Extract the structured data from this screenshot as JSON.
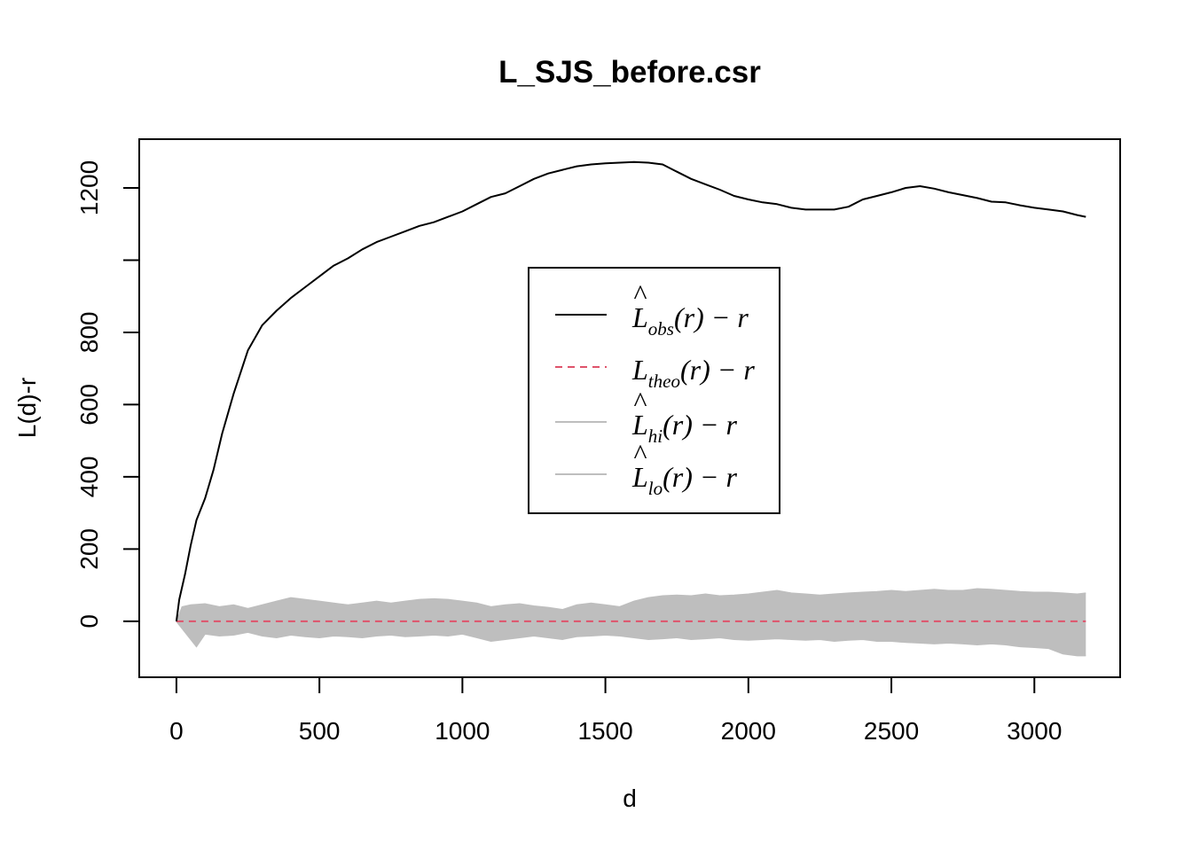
{
  "chart_data": {
    "type": "line",
    "title": "L_SJS_before.csr",
    "xlabel": "d",
    "ylabel": "L(d)-r",
    "xlim": [
      -130,
      3300
    ],
    "ylim": [
      -155,
      1335
    ],
    "x_ticks": [
      0,
      500,
      1000,
      1500,
      2000,
      2500,
      3000
    ],
    "y_ticks": [
      0,
      200,
      400,
      600,
      800,
      1000,
      1200
    ],
    "y_tick_labels": [
      "0",
      "200",
      "400",
      "600",
      "800",
      "",
      "1200"
    ],
    "legend": {
      "position": "center",
      "entries": [
        {
          "main": "L",
          "hat": "^",
          "sub": "obs",
          "tail": "(r) − r",
          "color": "#000000",
          "style": "solid"
        },
        {
          "main": "L",
          "hat": "",
          "sub": "theo",
          "tail": "(r) − r",
          "color": "#df536b",
          "style": "dashed"
        },
        {
          "main": "L",
          "hat": "^",
          "sub": "hi",
          "tail": "(r) − r",
          "color": "#bebebe",
          "style": "solid"
        },
        {
          "main": "L",
          "hat": "^",
          "sub": "lo",
          "tail": "(r) − r",
          "color": "#bebebe",
          "style": "solid"
        }
      ]
    },
    "series": [
      {
        "name": "obs",
        "color": "#000000",
        "x": [
          0,
          10,
          30,
          50,
          70,
          100,
          130,
          160,
          200,
          250,
          300,
          350,
          400,
          450,
          500,
          550,
          600,
          650,
          700,
          750,
          800,
          850,
          900,
          950,
          1000,
          1050,
          1100,
          1150,
          1200,
          1250,
          1300,
          1350,
          1400,
          1450,
          1500,
          1550,
          1600,
          1650,
          1700,
          1750,
          1800,
          1850,
          1900,
          1950,
          2000,
          2050,
          2100,
          2150,
          2200,
          2250,
          2300,
          2350,
          2400,
          2450,
          2500,
          2550,
          2600,
          2650,
          2700,
          2750,
          2800,
          2850,
          2900,
          2950,
          3000,
          3050,
          3100,
          3150,
          3180
        ],
        "values": [
          0,
          60,
          130,
          210,
          280,
          340,
          420,
          520,
          630,
          750,
          820,
          860,
          895,
          925,
          955,
          985,
          1005,
          1030,
          1050,
          1065,
          1080,
          1095,
          1105,
          1120,
          1135,
          1155,
          1175,
          1185,
          1205,
          1225,
          1240,
          1250,
          1260,
          1265,
          1268,
          1270,
          1272,
          1270,
          1265,
          1245,
          1225,
          1210,
          1195,
          1178,
          1168,
          1160,
          1155,
          1145,
          1140,
          1140,
          1140,
          1148,
          1168,
          1178,
          1188,
          1200,
          1205,
          1198,
          1188,
          1180,
          1172,
          1162,
          1160,
          1152,
          1145,
          1140,
          1135,
          1125,
          1120
        ]
      },
      {
        "name": "hi",
        "color": "#bebebe",
        "x": [
          0,
          20,
          50,
          100,
          150,
          200,
          250,
          300,
          350,
          400,
          450,
          500,
          550,
          600,
          650,
          700,
          750,
          800,
          850,
          900,
          950,
          1000,
          1050,
          1100,
          1150,
          1200,
          1250,
          1300,
          1350,
          1400,
          1450,
          1500,
          1550,
          1600,
          1650,
          1700,
          1750,
          1800,
          1850,
          1900,
          1950,
          2000,
          2050,
          2100,
          2150,
          2200,
          2250,
          2300,
          2350,
          2400,
          2450,
          2500,
          2550,
          2600,
          2650,
          2700,
          2750,
          2800,
          2850,
          2900,
          2950,
          3000,
          3050,
          3100,
          3150,
          3180
        ],
        "values": [
          0,
          40,
          45,
          48,
          40,
          45,
          35,
          45,
          55,
          65,
          60,
          55,
          50,
          45,
          50,
          55,
          50,
          55,
          60,
          62,
          60,
          55,
          50,
          40,
          45,
          48,
          42,
          38,
          32,
          45,
          50,
          45,
          40,
          55,
          65,
          70,
          72,
          70,
          75,
          70,
          72,
          75,
          80,
          85,
          78,
          75,
          72,
          75,
          78,
          80,
          82,
          85,
          82,
          85,
          88,
          85,
          85,
          90,
          88,
          85,
          82,
          80,
          80,
          78,
          75,
          78
        ]
      },
      {
        "name": "lo",
        "color": "#bebebe",
        "x": [
          0,
          20,
          50,
          70,
          100,
          150,
          200,
          250,
          300,
          350,
          400,
          450,
          500,
          550,
          600,
          650,
          700,
          750,
          800,
          850,
          900,
          950,
          1000,
          1050,
          1100,
          1150,
          1200,
          1250,
          1300,
          1350,
          1400,
          1450,
          1500,
          1550,
          1600,
          1650,
          1700,
          1750,
          1800,
          1850,
          1900,
          1950,
          2000,
          2050,
          2100,
          2150,
          2200,
          2250,
          2300,
          2350,
          2400,
          2450,
          2500,
          2550,
          2600,
          2650,
          2700,
          2750,
          2800,
          2850,
          2900,
          2950,
          3000,
          3050,
          3100,
          3150,
          3180
        ],
        "values": [
          0,
          -20,
          -50,
          -70,
          -35,
          -40,
          -38,
          -30,
          -40,
          -45,
          -38,
          -42,
          -45,
          -40,
          -42,
          -45,
          -40,
          -38,
          -42,
          -40,
          -38,
          -40,
          -35,
          -45,
          -55,
          -50,
          -45,
          -40,
          -45,
          -50,
          -42,
          -40,
          -38,
          -40,
          -45,
          -50,
          -48,
          -45,
          -50,
          -48,
          -45,
          -50,
          -52,
          -50,
          -48,
          -50,
          -52,
          -50,
          -55,
          -52,
          -50,
          -55,
          -55,
          -58,
          -60,
          -62,
          -60,
          -62,
          -65,
          -62,
          -65,
          -70,
          -72,
          -75,
          -90,
          -95,
          -95
        ]
      },
      {
        "name": "theo",
        "color": "#df536b",
        "x": [
          0,
          3180
        ],
        "values": [
          0,
          0
        ]
      }
    ]
  }
}
